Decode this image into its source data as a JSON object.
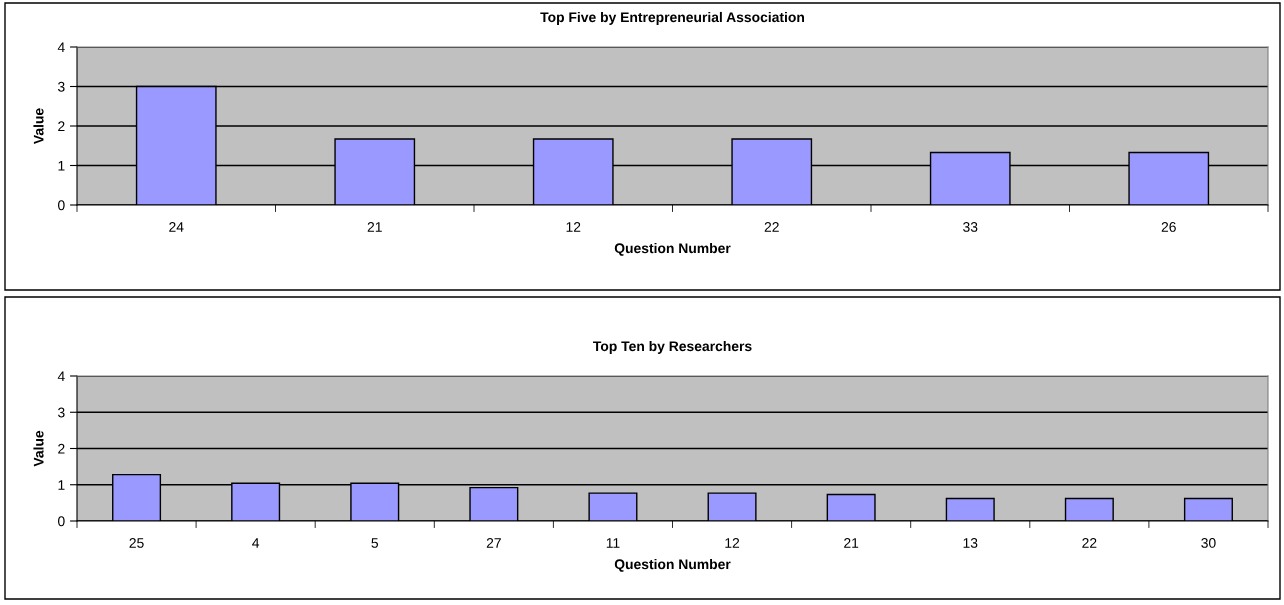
{
  "chart_data": [
    {
      "type": "bar",
      "title": "Top Five by Entrepreneurial Association",
      "xlabel": "Question Number",
      "ylabel": "Value",
      "categories": [
        "24",
        "21",
        "12",
        "22",
        "33",
        "26"
      ],
      "values": [
        3,
        1.67,
        1.67,
        1.67,
        1.33,
        1.33
      ],
      "color": "#9999ff",
      "ylim": [
        0,
        4
      ],
      "yticks": [
        0,
        1,
        2,
        3,
        4
      ],
      "grid": "y",
      "legend": false
    },
    {
      "type": "bar",
      "title": "Top Ten by Researchers",
      "xlabel": "Question Number",
      "ylabel": "Value",
      "categories": [
        "25",
        "4",
        "5",
        "27",
        "11",
        "12",
        "21",
        "13",
        "22",
        "30"
      ],
      "values": [
        1.28,
        1.04,
        1.04,
        0.92,
        0.77,
        0.77,
        0.73,
        0.62,
        0.62,
        0.62
      ],
      "color": "#9999ff",
      "ylim": [
        0,
        4
      ],
      "yticks": [
        0,
        1,
        2,
        3,
        4
      ],
      "grid": "y",
      "legend": false
    }
  ]
}
